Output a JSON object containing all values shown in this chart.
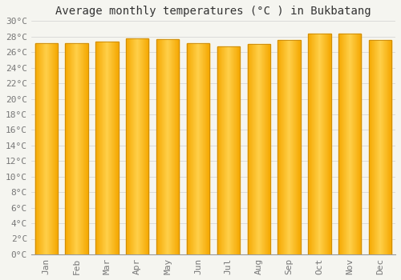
{
  "title": "Average monthly temperatures (°C ) in Bukbatang",
  "months": [
    "Jan",
    "Feb",
    "Mar",
    "Apr",
    "May",
    "Jun",
    "Jul",
    "Aug",
    "Sep",
    "Oct",
    "Nov",
    "Dec"
  ],
  "temperatures": [
    27.2,
    27.2,
    27.4,
    27.8,
    27.7,
    27.1,
    26.7,
    27.0,
    27.6,
    28.4,
    28.4,
    27.6
  ],
  "bar_color_center": "#FFD04A",
  "bar_color_edge": "#F5A800",
  "bar_edge_color": "#B8860B",
  "ylim": [
    0,
    30
  ],
  "ytick_step": 2,
  "background_color": "#f5f5f0",
  "plot_bg_color": "#f5f5f0",
  "grid_color": "#d0d0d0",
  "title_fontsize": 10,
  "tick_fontsize": 8,
  "title_color": "#333333",
  "tick_color": "#777777"
}
